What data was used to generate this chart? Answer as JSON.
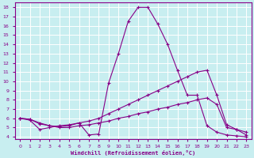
{
  "xlabel": "Windchill (Refroidissement éolien,°C)",
  "bg_color": "#c8eef0",
  "line_color": "#880088",
  "grid_color": "#ffffff",
  "xlim": [
    -0.5,
    23.5
  ],
  "ylim": [
    3.8,
    18.5
  ],
  "xticks": [
    0,
    1,
    2,
    3,
    4,
    5,
    6,
    7,
    8,
    9,
    10,
    11,
    12,
    13,
    14,
    15,
    16,
    17,
    18,
    19,
    20,
    21,
    22,
    23
  ],
  "yticks": [
    4,
    5,
    6,
    7,
    8,
    9,
    10,
    11,
    12,
    13,
    14,
    15,
    16,
    17,
    18
  ],
  "line1_x": [
    0,
    1,
    2,
    3,
    4,
    5,
    6,
    7,
    8,
    9,
    10,
    11,
    12,
    13,
    14,
    15,
    16,
    17,
    18,
    19,
    20,
    21,
    22,
    23
  ],
  "line1_y": [
    6.0,
    5.8,
    4.8,
    5.0,
    5.2,
    5.3,
    5.5,
    4.2,
    4.3,
    9.8,
    13.0,
    16.5,
    18.0,
    18.0,
    16.2,
    14.0,
    11.2,
    8.5,
    8.5,
    5.2,
    4.5,
    4.2,
    4.1,
    4.0
  ],
  "line2_x": [
    0,
    1,
    2,
    3,
    4,
    5,
    6,
    7,
    8,
    9,
    10,
    11,
    12,
    13,
    14,
    15,
    16,
    17,
    18,
    19,
    20,
    21,
    22,
    23
  ],
  "line2_y": [
    6.0,
    5.9,
    5.5,
    5.2,
    5.1,
    5.2,
    5.5,
    5.7,
    6.0,
    6.5,
    7.0,
    7.5,
    8.0,
    8.5,
    9.0,
    9.5,
    10.0,
    10.5,
    11.0,
    11.2,
    8.5,
    5.3,
    4.8,
    4.5
  ],
  "line3_x": [
    0,
    1,
    2,
    3,
    4,
    5,
    6,
    7,
    8,
    9,
    10,
    11,
    12,
    13,
    14,
    15,
    16,
    17,
    18,
    19,
    20,
    21,
    22,
    23
  ],
  "line3_y": [
    6.0,
    5.9,
    5.4,
    5.2,
    5.0,
    5.0,
    5.2,
    5.3,
    5.5,
    5.7,
    6.0,
    6.2,
    6.5,
    6.7,
    7.0,
    7.2,
    7.5,
    7.7,
    8.0,
    8.2,
    7.5,
    5.0,
    4.8,
    4.2
  ]
}
